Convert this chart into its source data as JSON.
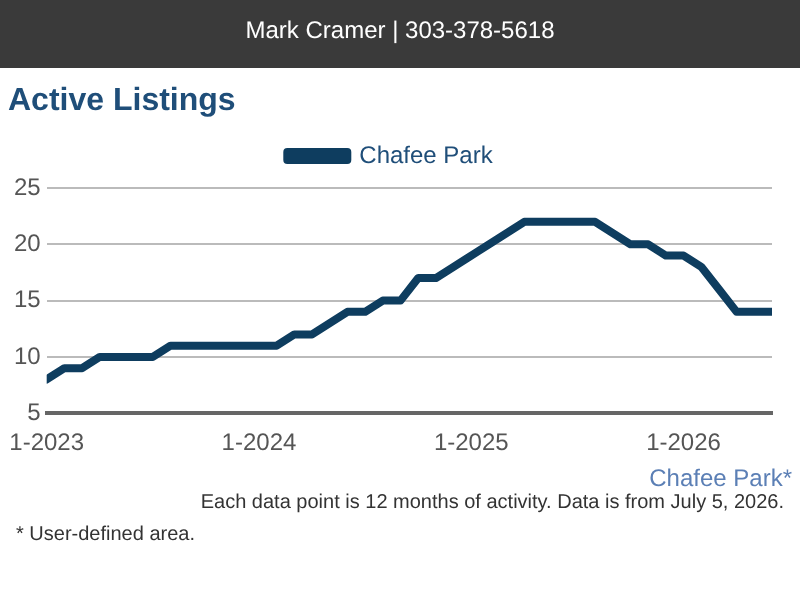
{
  "chart_data": {
    "type": "line",
    "title": "Active Listings",
    "subtitle": "Mark Cramer | 303-378-5618",
    "x": [
      "2023-01",
      "2023-02",
      "2023-03",
      "2023-04",
      "2023-05",
      "2023-06",
      "2023-07",
      "2023-08",
      "2023-09",
      "2023-10",
      "2023-11",
      "2023-12",
      "2024-01",
      "2024-02",
      "2024-03",
      "2024-04",
      "2024-05",
      "2024-06",
      "2024-07",
      "2024-08",
      "2024-09",
      "2024-10",
      "2024-11",
      "2024-12",
      "2025-01",
      "2025-02",
      "2025-03",
      "2025-04",
      "2025-05",
      "2025-06",
      "2025-07",
      "2025-08",
      "2025-09",
      "2025-10",
      "2025-11",
      "2025-12",
      "2026-01",
      "2026-02",
      "2026-03",
      "2026-04",
      "2026-05",
      "2026-06"
    ],
    "series": [
      {
        "name": "Chafee Park",
        "color": "#0e3d5f",
        "values": [
          8,
          9,
          9,
          10,
          10,
          10,
          10,
          11,
          11,
          11,
          11,
          11,
          11,
          11,
          12,
          12,
          13,
          14,
          14,
          15,
          15,
          17,
          17,
          18,
          19,
          20,
          21,
          22,
          22,
          22,
          22,
          22,
          21,
          20,
          20,
          19,
          19,
          18,
          16,
          14,
          14,
          14
        ]
      }
    ],
    "xlim": [
      "2023-01",
      "2026-06"
    ],
    "xticks": [
      {
        "value": "2023-01",
        "label": "1-2023"
      },
      {
        "value": "2024-01",
        "label": "1-2024"
      },
      {
        "value": "2025-01",
        "label": "1-2025"
      },
      {
        "value": "2026-01",
        "label": "1-2026"
      }
    ],
    "ylim": [
      5,
      25
    ],
    "yticks": [
      5,
      10,
      15,
      20,
      25
    ],
    "grid": "y",
    "legend": "top",
    "marker": "none",
    "line_style": "solid",
    "annotations": [
      "Chafee Park*",
      "Each data point is 12 months of activity. Data is from July 5, 2026.",
      "* User-defined area."
    ]
  }
}
